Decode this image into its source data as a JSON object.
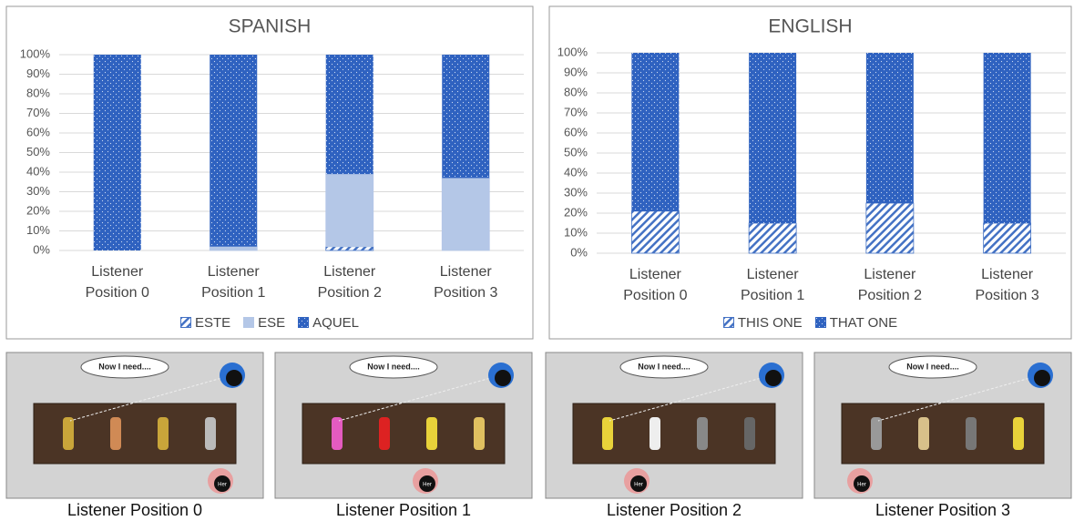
{
  "chart_data": [
    {
      "type": "stacked_bar",
      "title": "SPANISH",
      "categories": [
        "Listener Position 0",
        "Listener Position 1",
        "Listener Position 2",
        "Listener Position 3"
      ],
      "series": [
        {
          "name": "ESTE",
          "color": "#4472c4",
          "pattern": "hatch",
          "values": [
            0,
            0,
            2,
            0
          ]
        },
        {
          "name": "ESE",
          "color": "#b4c7e7",
          "pattern": "solid",
          "values": [
            0,
            2,
            37,
            37
          ]
        },
        {
          "name": "AQUEL",
          "color": "#2f62c0",
          "pattern": "dots",
          "values": [
            100,
            98,
            61,
            63
          ]
        }
      ],
      "ylim": [
        0,
        100
      ],
      "yticks": [
        {
          "value": 0,
          "label": "0%"
        },
        {
          "value": 10,
          "label": "10%"
        },
        {
          "value": 20,
          "label": "20%"
        },
        {
          "value": 30,
          "label": "30%"
        },
        {
          "value": 40,
          "label": "40%"
        },
        {
          "value": 50,
          "label": "50%"
        },
        {
          "value": 60,
          "label": "60%"
        },
        {
          "value": 70,
          "label": "70%"
        },
        {
          "value": 80,
          "label": "80%"
        },
        {
          "value": 90,
          "label": "90%"
        },
        {
          "value": 100,
          "label": "100%"
        }
      ],
      "grid": true,
      "legend": "bottom"
    },
    {
      "type": "stacked_bar",
      "title": "ENGLISH",
      "categories": [
        "Listener Position 0",
        "Listener Position 1",
        "Listener Position 2",
        "Listener Position 3"
      ],
      "series": [
        {
          "name": "THIS ONE",
          "color": "#4472c4",
          "pattern": "hatch",
          "values": [
            21,
            15,
            25,
            15
          ]
        },
        {
          "name": "THAT ONE",
          "color": "#2f62c0",
          "pattern": "dots",
          "values": [
            79,
            85,
            75,
            85
          ]
        }
      ],
      "ylim": [
        0,
        100
      ],
      "yticks": [
        {
          "value": 0,
          "label": "0%"
        },
        {
          "value": 10,
          "label": "10%"
        },
        {
          "value": 20,
          "label": "20%"
        },
        {
          "value": 30,
          "label": "30%"
        },
        {
          "value": 40,
          "label": "40%"
        },
        {
          "value": 50,
          "label": "50%"
        },
        {
          "value": 60,
          "label": "60%"
        },
        {
          "value": 70,
          "label": "70%"
        },
        {
          "value": 80,
          "label": "80%"
        },
        {
          "value": 90,
          "label": "90%"
        },
        {
          "value": 100,
          "label": "100%"
        }
      ],
      "grid": true,
      "legend": "bottom"
    }
  ],
  "panels": [
    {
      "bubble": "Now I need....",
      "listener_label": "Her",
      "caption": "Listener Position 0"
    },
    {
      "bubble": "Now I need....",
      "listener_label": "Her",
      "caption": "Listener Position 1"
    },
    {
      "bubble": "Now I need....",
      "listener_label": "Her",
      "caption": "Listener Position 2"
    },
    {
      "bubble": "Now I need....",
      "listener_label": "Her",
      "caption": "Listener Position 3"
    }
  ]
}
